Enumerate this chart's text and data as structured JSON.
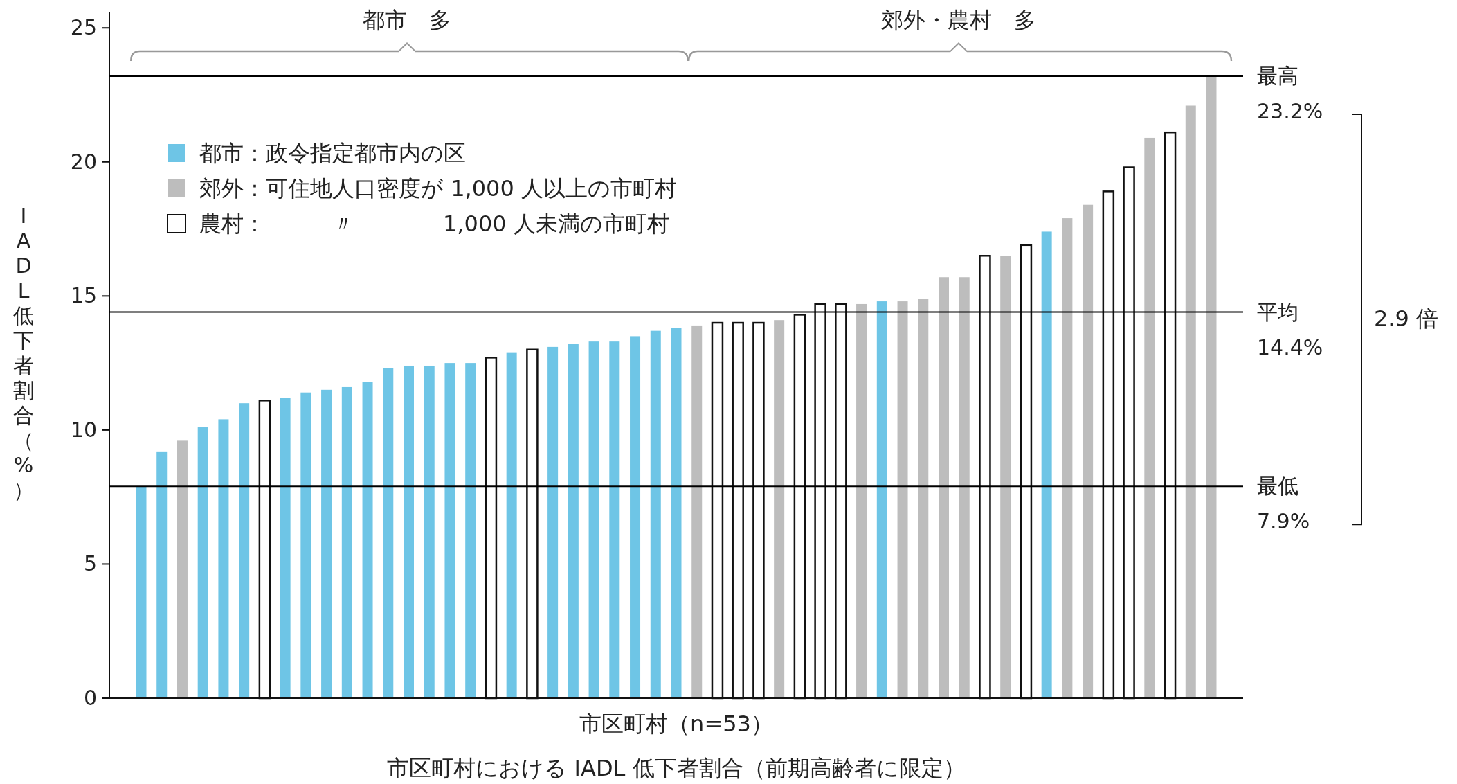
{
  "chart_data": {
    "type": "bar",
    "title": "市区町村における IADL 低下者割合（前期高齢者に限定）",
    "xlabel": "市区町村（n=53）",
    "ylabel": "IADL低下者割合（%）",
    "categories": [
      null,
      null,
      null,
      null,
      null,
      null,
      null,
      null,
      null,
      null,
      null,
      null,
      null,
      null,
      null,
      null,
      null,
      null,
      null,
      null,
      null,
      null,
      null,
      null,
      null,
      null,
      null,
      null,
      null,
      null,
      null,
      null,
      null,
      null,
      null,
      null,
      null,
      null,
      null,
      null,
      null,
      null,
      null,
      null,
      null,
      null,
      null,
      null,
      null,
      null,
      null,
      null,
      null
    ],
    "series": [
      {
        "name": "都市：政令指定都市内の区",
        "color": "#6ec5e6",
        "values": [
          7.9,
          9.2,
          null,
          10.1,
          10.4,
          11.0,
          null,
          11.2,
          11.4,
          11.5,
          11.6,
          11.8,
          12.3,
          12.4,
          12.4,
          12.5,
          12.5,
          null,
          12.9,
          null,
          13.1,
          13.2,
          13.3,
          13.3,
          13.5,
          13.7,
          13.8,
          null,
          null,
          null,
          null,
          null,
          null,
          null,
          null,
          null,
          14.8,
          null,
          null,
          null,
          null,
          null,
          null,
          null,
          17.4,
          null,
          null,
          null,
          null,
          null,
          null,
          null,
          null
        ]
      },
      {
        "name": "郊外：可住地人口密度が 1,000 人以上の市町村",
        "color": "#bdbdbd",
        "values": [
          null,
          null,
          9.6,
          null,
          null,
          null,
          null,
          null,
          null,
          null,
          null,
          null,
          null,
          null,
          null,
          null,
          null,
          null,
          null,
          null,
          null,
          null,
          null,
          null,
          null,
          null,
          null,
          13.9,
          null,
          null,
          null,
          14.1,
          null,
          null,
          null,
          14.7,
          null,
          14.8,
          14.9,
          15.7,
          15.7,
          null,
          16.5,
          null,
          null,
          17.9,
          18.4,
          null,
          null,
          20.9,
          null,
          22.1,
          23.2
        ]
      },
      {
        "name": "農村：　　　〃　　　　1,000 人未満の市町村",
        "color": "#ffffff",
        "values": [
          null,
          null,
          null,
          null,
          null,
          null,
          11.1,
          null,
          null,
          null,
          null,
          null,
          null,
          null,
          null,
          null,
          null,
          12.7,
          null,
          13.0,
          null,
          null,
          null,
          null,
          null,
          null,
          null,
          null,
          14.0,
          14.0,
          14.0,
          null,
          14.3,
          14.7,
          14.7,
          null,
          null,
          null,
          null,
          null,
          null,
          16.5,
          null,
          16.9,
          null,
          null,
          null,
          18.9,
          19.8,
          null,
          21.1,
          null,
          null
        ]
      }
    ],
    "ylim": [
      0,
      25.6
    ],
    "yticks": [
      0,
      5,
      10,
      15,
      20,
      25
    ],
    "legend": "top left",
    "stacked": true,
    "ref_lines": [
      {
        "axis": "y",
        "value": 23.2,
        "label": "最高\n23.2%",
        "color": "#000000"
      },
      {
        "axis": "y",
        "value": 14.4,
        "label": "平均\n14.4%",
        "color": "#000000"
      },
      {
        "axis": "y",
        "value": 7.9,
        "label": "最低\n7.9%",
        "color": "#000000"
      }
    ],
    "annotations": [
      "都市　多",
      "郊外・農村　多",
      "2.9 倍"
    ]
  }
}
